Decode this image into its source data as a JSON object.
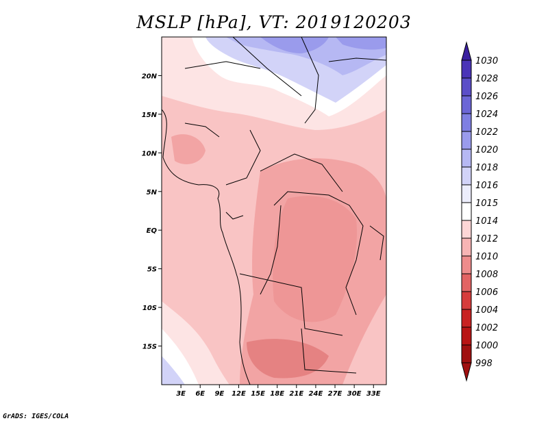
{
  "title": "MSLP [hPa], VT: 2019120203",
  "footer": "GrADS: IGES/COLA",
  "map": {
    "lon_ticks": [
      "3E",
      "6E",
      "9E",
      "12E",
      "15E",
      "18E",
      "21E",
      "24E",
      "27E",
      "30E",
      "33E"
    ],
    "lat_ticks": [
      "20N",
      "15N",
      "10N",
      "5N",
      "EQ",
      "5S",
      "10S",
      "15S"
    ],
    "lon_range": [
      0,
      35
    ],
    "lat_range": [
      -20,
      25
    ]
  },
  "colorbar": {
    "levels": [
      "1030",
      "1028",
      "1026",
      "1024",
      "1022",
      "1020",
      "1018",
      "1016",
      "1015",
      "1014",
      "1012",
      "1010",
      "1008",
      "1006",
      "1004",
      "1002",
      "1000",
      "998"
    ],
    "colors": [
      "#3a1fa0",
      "#4a34b8",
      "#5b4ec8",
      "#6c66d6",
      "#7f7fe2",
      "#9a9bec",
      "#b6b8f3",
      "#d2d3f8",
      "#ecedfc",
      "#ffffff",
      "#fdd6d6",
      "#f7b4b4",
      "#ee8c8c",
      "#e26464",
      "#d63c3c",
      "#c82222",
      "#b81414",
      "#a01010"
    ]
  }
}
